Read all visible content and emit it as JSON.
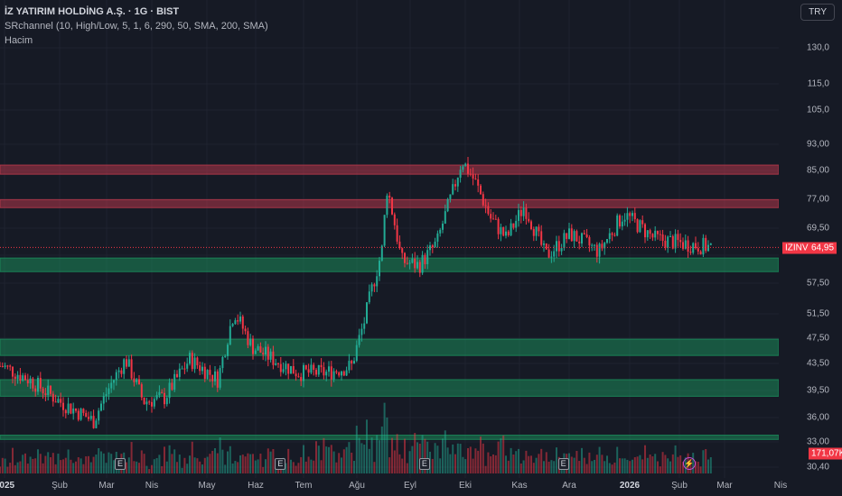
{
  "header": {
    "title": "İZ YATIRIM HOLDİNG A.Ş. · 1G · BIST",
    "indicator": "SRchannel (10, High/Low, 5, 1, 6, 290, 50, SMA, 200, SMA)",
    "volume_label": "Hacim",
    "currency": "TRY"
  },
  "symbol_tag": "IZINV",
  "last_price": "64,95",
  "volume_tag": "171,07K",
  "colors": {
    "up": "#22ab94",
    "down": "#f23645",
    "resistance": "#b2374a",
    "support": "#1b8a5a"
  },
  "earnings_badge": "E",
  "chart_data": {
    "type": "candlestick",
    "y_scale": "log",
    "y_ticks": [
      "130,0",
      "115,0",
      "105,0",
      "93,00",
      "85,00",
      "77,00",
      "69,50",
      "57,50",
      "51,50",
      "47,50",
      "43,50",
      "39,50",
      "36,00",
      "33,00",
      "30,40"
    ],
    "x_ticks": [
      {
        "label": "2025",
        "bold": true
      },
      {
        "label": "Şub"
      },
      {
        "label": "Mar"
      },
      {
        "label": "Nis"
      },
      {
        "label": "May"
      },
      {
        "label": "Haz"
      },
      {
        "label": "Tem"
      },
      {
        "label": "Ağu"
      },
      {
        "label": "Eyl"
      },
      {
        "label": "Eki"
      },
      {
        "label": "Kas"
      },
      {
        "label": "Ara"
      },
      {
        "label": "2026",
        "bold": true
      },
      {
        "label": "Şub"
      },
      {
        "label": "Mar"
      },
      {
        "label": "Nis"
      }
    ],
    "close_path": [
      [
        "2024-12-31",
        43
      ],
      [
        "2025-01-15",
        41
      ],
      [
        "2025-02-01",
        38
      ],
      [
        "2025-02-20",
        35.5
      ],
      [
        "2025-03-01",
        40
      ],
      [
        "2025-03-10",
        44
      ],
      [
        "2025-03-20",
        38
      ],
      [
        "2025-04-01",
        38.5
      ],
      [
        "2025-04-15",
        44
      ],
      [
        "2025-05-01",
        41
      ],
      [
        "2025-05-10",
        52
      ],
      [
        "2025-05-20",
        46
      ],
      [
        "2025-06-01",
        44
      ],
      [
        "2025-06-15",
        42
      ],
      [
        "2025-07-01",
        42
      ],
      [
        "2025-07-15",
        43
      ],
      [
        "2025-07-22",
        50
      ],
      [
        "2025-08-01",
        64
      ],
      [
        "2025-08-04",
        80
      ],
      [
        "2025-08-12",
        62
      ],
      [
        "2025-08-22",
        61
      ],
      [
        "2025-09-01",
        66
      ],
      [
        "2025-09-10",
        79
      ],
      [
        "2025-09-15",
        88
      ],
      [
        "2025-09-22",
        82
      ],
      [
        "2025-10-01",
        72
      ],
      [
        "2025-10-10",
        67
      ],
      [
        "2025-10-20",
        75
      ],
      [
        "2025-11-01",
        63
      ],
      [
        "2025-11-15",
        68
      ],
      [
        "2025-12-01",
        64
      ],
      [
        "2025-12-15",
        73
      ],
      [
        "2026-01-01",
        67
      ],
      [
        "2026-01-15",
        66
      ],
      [
        "2026-02-03",
        64.95
      ]
    ],
    "sr_zones": [
      {
        "type": "resistance",
        "low": 83.8,
        "high": 86.5
      },
      {
        "type": "resistance",
        "low": 74.6,
        "high": 76.7
      },
      {
        "type": "support",
        "low": 59.7,
        "high": 62.6
      },
      {
        "type": "support",
        "low": 44.6,
        "high": 47.2
      },
      {
        "type": "support",
        "low": 38.7,
        "high": 41.0
      },
      {
        "type": "support",
        "low": 33.3,
        "high": 33.8
      }
    ],
    "earnings_dates": [
      "2025-03-07",
      "2025-06-05",
      "2025-08-25",
      "2025-11-11"
    ]
  }
}
